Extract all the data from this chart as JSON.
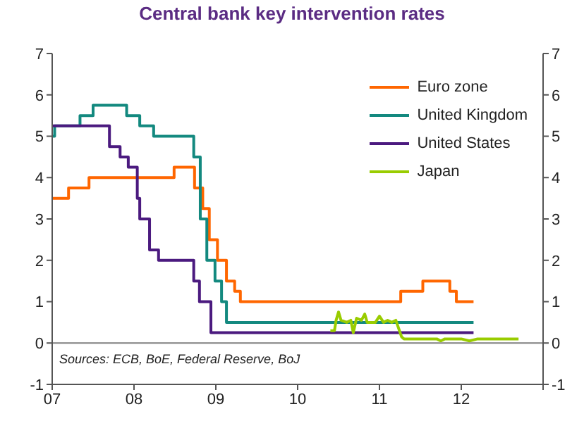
{
  "chart_data": {
    "type": "step",
    "title": "Central bank key intervention rates",
    "xlim": [
      2007,
      2013
    ],
    "xticks": [
      {
        "value": 2007,
        "label": "07"
      },
      {
        "value": 2008,
        "label": "08"
      },
      {
        "value": 2009,
        "label": "09"
      },
      {
        "value": 2010,
        "label": "10"
      },
      {
        "value": 2011,
        "label": "11"
      },
      {
        "value": 2012,
        "label": "12"
      },
      {
        "value": 2013,
        "label": null
      }
    ],
    "ylim": [
      -1,
      7
    ],
    "yticks": [
      -1,
      0,
      1,
      2,
      3,
      4,
      5,
      6,
      7
    ],
    "y2lim": [
      -1,
      7
    ],
    "y2ticks": [
      -1,
      0,
      1,
      2,
      3,
      4,
      5,
      6,
      7
    ],
    "legend": "top right",
    "ref_lines": [
      {
        "axis": "y",
        "value": 0,
        "color": "#808080"
      }
    ],
    "annotations": [
      "Sources: ECB, BoE, Federal Reserve, BoJ"
    ],
    "series": [
      {
        "name": "Euro zone",
        "color": "#ff6600",
        "x": [
          2007,
          2007.2,
          2007.45,
          2008.49,
          2008.74,
          2008.84,
          2008.92,
          2009.02,
          2009.13,
          2009.23,
          2009.3,
          2011.26,
          2011.53,
          2011.86,
          2011.94,
          2012.15
        ],
        "values": [
          3.5,
          3.75,
          4,
          4.25,
          3.75,
          3.25,
          2.5,
          2,
          1.5,
          1.25,
          1,
          1.25,
          1.5,
          1.25,
          1,
          1
        ]
      },
      {
        "name": "United Kingdom",
        "color": "#13897f",
        "x": [
          2007,
          2007.03,
          2007.34,
          2007.5,
          2007.91,
          2008.07,
          2008.24,
          2008.73,
          2008.81,
          2008.89,
          2008.99,
          2009.07,
          2009.13,
          2012.15
        ],
        "values": [
          5,
          5.25,
          5.5,
          5.75,
          5.5,
          5.25,
          5,
          4.5,
          3,
          2,
          1.5,
          1,
          0.5,
          0.5
        ]
      },
      {
        "name": "United States",
        "color": "#4b1a7f",
        "x": [
          2007,
          2007.7,
          2007.83,
          2007.93,
          2008.04,
          2008.07,
          2008.19,
          2008.3,
          2008.73,
          2008.8,
          2008.94,
          2012.15
        ],
        "values": [
          5.25,
          4.75,
          4.5,
          4.25,
          3.5,
          3,
          2.25,
          2,
          1.5,
          1,
          0.25,
          0.25
        ]
      },
      {
        "name": "Japan",
        "type": "line",
        "color": "#99cc00",
        "x": [
          2010.4,
          2010.45,
          2010.47,
          2010.5,
          2010.53,
          2010.6,
          2010.65,
          2010.68,
          2010.72,
          2010.78,
          2010.82,
          2010.85,
          2010.95,
          2011,
          2011.05,
          2011.1,
          2011.15,
          2011.2,
          2011.27,
          2011.3,
          2011.7,
          2011.75,
          2011.8,
          2012,
          2012.1,
          2012.2,
          2012.7
        ],
        "values": [
          0.3,
          0.3,
          0.55,
          0.75,
          0.55,
          0.5,
          0.55,
          0.25,
          0.6,
          0.55,
          0.7,
          0.5,
          0.5,
          0.65,
          0.5,
          0.55,
          0.5,
          0.55,
          0.15,
          0.1,
          0.1,
          0.05,
          0.1,
          0.1,
          0.05,
          0.1,
          0.1
        ]
      }
    ]
  }
}
